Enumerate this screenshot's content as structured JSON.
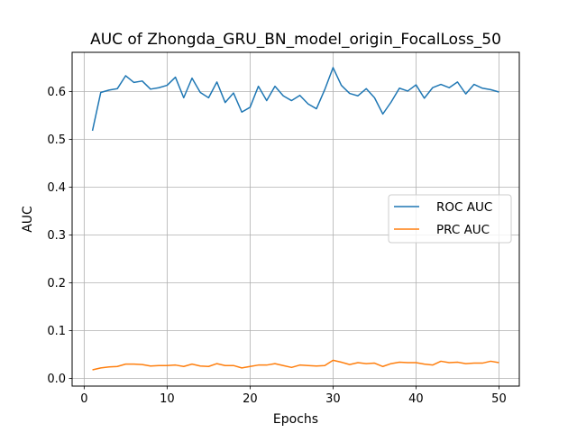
{
  "chart_data": {
    "type": "line",
    "title": "AUC of Zhongda_GRU_BN_model_origin_FocalLoss_50",
    "xlabel": "Epochs",
    "ylabel": "AUC",
    "xlim": [
      -1.45,
      52.45
    ],
    "ylim": [
      -0.016,
      0.682
    ],
    "xticks": [
      0,
      10,
      20,
      30,
      40,
      50
    ],
    "yticks": [
      0.0,
      0.1,
      0.2,
      0.3,
      0.4,
      0.5,
      0.6
    ],
    "grid": true,
    "legend_position": "center-right",
    "x": [
      1,
      2,
      3,
      4,
      5,
      6,
      7,
      8,
      9,
      10,
      11,
      12,
      13,
      14,
      15,
      16,
      17,
      18,
      19,
      20,
      21,
      22,
      23,
      24,
      25,
      26,
      27,
      28,
      29,
      30,
      31,
      32,
      33,
      34,
      35,
      36,
      37,
      38,
      39,
      40,
      41,
      42,
      43,
      44,
      45,
      46,
      47,
      48,
      49,
      50
    ],
    "series": [
      {
        "name": "ROC AUC",
        "color": "#1f77b4",
        "values": [
          0.518,
          0.598,
          0.603,
          0.606,
          0.633,
          0.619,
          0.622,
          0.605,
          0.608,
          0.613,
          0.63,
          0.587,
          0.628,
          0.598,
          0.587,
          0.62,
          0.577,
          0.597,
          0.557,
          0.567,
          0.611,
          0.581,
          0.611,
          0.591,
          0.581,
          0.592,
          0.574,
          0.564,
          0.604,
          0.65,
          0.613,
          0.596,
          0.591,
          0.606,
          0.587,
          0.553,
          0.578,
          0.607,
          0.601,
          0.614,
          0.586,
          0.608,
          0.615,
          0.608,
          0.62,
          0.595,
          0.615,
          0.607,
          0.604,
          0.599
        ]
      },
      {
        "name": "PRC AUC",
        "color": "#ff7f0e",
        "values": [
          0.018,
          0.022,
          0.024,
          0.025,
          0.03,
          0.03,
          0.029,
          0.026,
          0.027,
          0.027,
          0.028,
          0.025,
          0.03,
          0.026,
          0.025,
          0.031,
          0.027,
          0.027,
          0.022,
          0.025,
          0.028,
          0.028,
          0.031,
          0.027,
          0.023,
          0.028,
          0.027,
          0.026,
          0.027,
          0.038,
          0.034,
          0.029,
          0.033,
          0.031,
          0.032,
          0.025,
          0.031,
          0.034,
          0.033,
          0.033,
          0.03,
          0.028,
          0.036,
          0.033,
          0.034,
          0.031,
          0.032,
          0.032,
          0.036,
          0.033
        ]
      }
    ]
  }
}
